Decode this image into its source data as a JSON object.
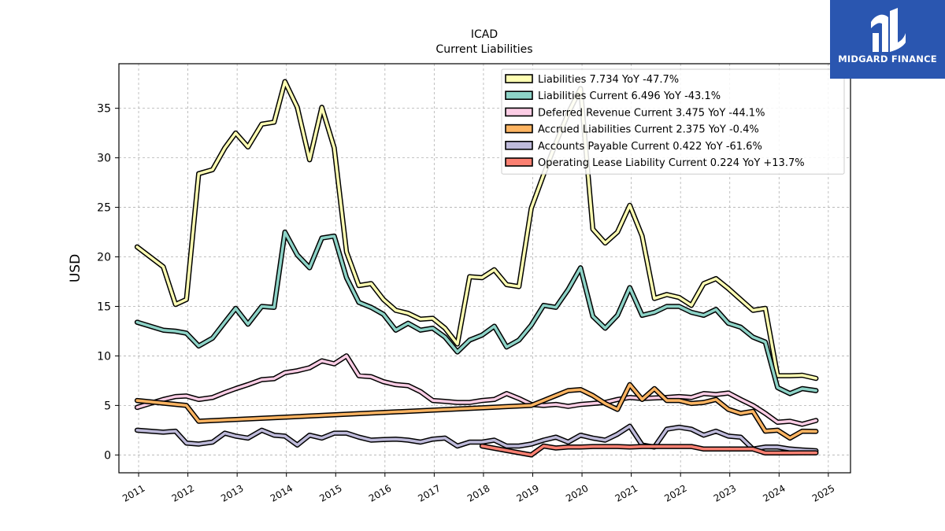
{
  "brand": {
    "name": "MIDGARD FINANCE",
    "bg_color": "#2a56b0"
  },
  "chart_data": {
    "type": "line",
    "title": "ICAD",
    "subtitle": "Current  Liabilities",
    "ylabel": "USD",
    "xlabel": "",
    "ylim": [
      -1.8,
      39.5
    ],
    "xlim": [
      2010.6,
      2025.45
    ],
    "yticks": [
      0,
      5,
      10,
      15,
      20,
      25,
      30,
      35
    ],
    "xticks": [
      "2011",
      "2012",
      "2013",
      "2014",
      "2015",
      "2016",
      "2017",
      "2018",
      "2019",
      "2020",
      "2021",
      "2022",
      "2023",
      "2024",
      "2025"
    ],
    "grid": true,
    "legend_position": "top-right",
    "series": [
      {
        "name": "Liabilities",
        "legend": "Liabilities  7.734 YoY -47.7%",
        "color": "#ffffb3",
        "points": [
          [
            2010.97,
            21.0
          ],
          [
            2011.5,
            19.0
          ],
          [
            2011.75,
            15.2
          ],
          [
            2011.97,
            15.7
          ],
          [
            2012.22,
            28.4
          ],
          [
            2012.5,
            28.8
          ],
          [
            2012.75,
            31.0
          ],
          [
            2012.97,
            32.5
          ],
          [
            2013.22,
            31.1
          ],
          [
            2013.5,
            33.4
          ],
          [
            2013.75,
            33.6
          ],
          [
            2013.97,
            37.7
          ],
          [
            2014.22,
            35.1
          ],
          [
            2014.47,
            29.8
          ],
          [
            2014.72,
            35.1
          ],
          [
            2014.97,
            31.0
          ],
          [
            2015.22,
            20.5
          ],
          [
            2015.47,
            17.1
          ],
          [
            2015.72,
            17.3
          ],
          [
            2015.97,
            15.7
          ],
          [
            2016.22,
            14.6
          ],
          [
            2016.47,
            14.3
          ],
          [
            2016.72,
            13.7
          ],
          [
            2016.97,
            13.8
          ],
          [
            2017.22,
            12.8
          ],
          [
            2017.47,
            11.2
          ],
          [
            2017.72,
            18.0
          ],
          [
            2017.97,
            17.9
          ],
          [
            2018.22,
            18.7
          ],
          [
            2018.47,
            17.2
          ],
          [
            2018.72,
            17.0
          ],
          [
            2018.97,
            24.9
          ],
          [
            2019.22,
            28.3
          ],
          [
            2019.47,
            31.5
          ],
          [
            2019.72,
            34.5
          ],
          [
            2019.97,
            37.0
          ],
          [
            2020.22,
            22.8
          ],
          [
            2020.47,
            21.4
          ],
          [
            2020.72,
            22.5
          ],
          [
            2020.97,
            25.2
          ],
          [
            2021.22,
            22.1
          ],
          [
            2021.47,
            15.8
          ],
          [
            2021.72,
            16.2
          ],
          [
            2021.97,
            15.9
          ],
          [
            2022.22,
            15.1
          ],
          [
            2022.47,
            17.3
          ],
          [
            2022.72,
            17.8
          ],
          [
            2022.97,
            16.8
          ],
          [
            2023.22,
            15.7
          ],
          [
            2023.47,
            14.6
          ],
          [
            2023.72,
            14.8
          ],
          [
            2023.97,
            8.0
          ],
          [
            2024.22,
            8.0
          ],
          [
            2024.47,
            8.05
          ],
          [
            2024.75,
            7.73
          ]
        ]
      },
      {
        "name": "Liabilities Current",
        "legend": "Liabilities Current  6.496 YoY -43.1%",
        "color": "#8dd3c7",
        "points": [
          [
            2010.97,
            13.4
          ],
          [
            2011.5,
            12.6
          ],
          [
            2011.75,
            12.5
          ],
          [
            2011.97,
            12.3
          ],
          [
            2012.22,
            11.0
          ],
          [
            2012.5,
            11.8
          ],
          [
            2012.75,
            13.4
          ],
          [
            2012.97,
            14.8
          ],
          [
            2013.22,
            13.2
          ],
          [
            2013.5,
            15.0
          ],
          [
            2013.75,
            14.9
          ],
          [
            2013.97,
            22.5
          ],
          [
            2014.22,
            20.2
          ],
          [
            2014.47,
            18.9
          ],
          [
            2014.72,
            21.9
          ],
          [
            2014.97,
            22.1
          ],
          [
            2015.22,
            17.9
          ],
          [
            2015.47,
            15.4
          ],
          [
            2015.72,
            14.9
          ],
          [
            2015.97,
            14.2
          ],
          [
            2016.22,
            12.6
          ],
          [
            2016.47,
            13.3
          ],
          [
            2016.72,
            12.6
          ],
          [
            2016.97,
            12.8
          ],
          [
            2017.22,
            11.9
          ],
          [
            2017.47,
            10.4
          ],
          [
            2017.72,
            11.6
          ],
          [
            2017.97,
            12.1
          ],
          [
            2018.22,
            13.0
          ],
          [
            2018.47,
            10.9
          ],
          [
            2018.72,
            11.6
          ],
          [
            2018.97,
            13.1
          ],
          [
            2019.22,
            15.1
          ],
          [
            2019.47,
            14.9
          ],
          [
            2019.72,
            16.7
          ],
          [
            2019.97,
            18.9
          ],
          [
            2020.22,
            14.0
          ],
          [
            2020.47,
            12.8
          ],
          [
            2020.72,
            14.1
          ],
          [
            2020.97,
            16.9
          ],
          [
            2021.22,
            14.1
          ],
          [
            2021.47,
            14.4
          ],
          [
            2021.72,
            15.0
          ],
          [
            2021.97,
            15.0
          ],
          [
            2022.22,
            14.4
          ],
          [
            2022.47,
            14.1
          ],
          [
            2022.72,
            14.7
          ],
          [
            2022.97,
            13.3
          ],
          [
            2023.22,
            12.9
          ],
          [
            2023.47,
            11.9
          ],
          [
            2023.72,
            11.4
          ],
          [
            2023.97,
            6.8
          ],
          [
            2024.22,
            6.2
          ],
          [
            2024.47,
            6.7
          ],
          [
            2024.75,
            6.5
          ]
        ]
      },
      {
        "name": "Deferred Revenue Current",
        "legend": "Deferred Revenue Current  3.475 YoY -44.1%",
        "color": "#fccde5",
        "points": [
          [
            2010.97,
            4.8
          ],
          [
            2011.5,
            5.6
          ],
          [
            2011.75,
            5.9
          ],
          [
            2011.97,
            5.95
          ],
          [
            2012.22,
            5.6
          ],
          [
            2012.5,
            5.8
          ],
          [
            2012.75,
            6.3
          ],
          [
            2012.97,
            6.7
          ],
          [
            2013.22,
            7.1
          ],
          [
            2013.5,
            7.6
          ],
          [
            2013.75,
            7.7
          ],
          [
            2013.97,
            8.3
          ],
          [
            2014.22,
            8.5
          ],
          [
            2014.47,
            8.8
          ],
          [
            2014.72,
            9.5
          ],
          [
            2014.97,
            9.2
          ],
          [
            2015.22,
            10.0
          ],
          [
            2015.47,
            8.0
          ],
          [
            2015.72,
            7.9
          ],
          [
            2015.97,
            7.4
          ],
          [
            2016.22,
            7.1
          ],
          [
            2016.47,
            7.0
          ],
          [
            2016.72,
            6.4
          ],
          [
            2016.97,
            5.5
          ],
          [
            2017.22,
            5.4
          ],
          [
            2017.47,
            5.3
          ],
          [
            2017.72,
            5.3
          ],
          [
            2017.97,
            5.5
          ],
          [
            2018.22,
            5.6
          ],
          [
            2018.47,
            6.2
          ],
          [
            2018.72,
            5.7
          ],
          [
            2018.97,
            5.1
          ],
          [
            2019.22,
            5.0
          ],
          [
            2019.47,
            5.1
          ],
          [
            2019.72,
            4.9
          ],
          [
            2019.97,
            5.1
          ],
          [
            2020.22,
            5.2
          ],
          [
            2020.47,
            5.3
          ],
          [
            2020.72,
            5.6
          ],
          [
            2020.97,
            5.8
          ],
          [
            2021.22,
            5.7
          ],
          [
            2021.47,
            5.75
          ],
          [
            2021.72,
            5.8
          ],
          [
            2021.97,
            5.9
          ],
          [
            2022.22,
            5.8
          ],
          [
            2022.47,
            6.2
          ],
          [
            2022.72,
            6.1
          ],
          [
            2022.97,
            6.25
          ],
          [
            2023.22,
            5.6
          ],
          [
            2023.47,
            5.0
          ],
          [
            2023.72,
            4.2
          ],
          [
            2023.97,
            3.3
          ],
          [
            2024.22,
            3.4
          ],
          [
            2024.47,
            3.1
          ],
          [
            2024.75,
            3.48
          ]
        ]
      },
      {
        "name": "Accrued Liabilities Current",
        "legend": "Accrued Liabilities Current  2.375 YoY -0.4%",
        "color": "#fdb462",
        "points": [
          [
            2010.97,
            5.5
          ],
          [
            2011.97,
            5.0
          ],
          [
            2012.22,
            3.4
          ],
          [
            2018.97,
            5.0
          ],
          [
            2019.22,
            5.5
          ],
          [
            2019.47,
            6.0
          ],
          [
            2019.72,
            6.5
          ],
          [
            2019.97,
            6.6
          ],
          [
            2020.22,
            6.0
          ],
          [
            2020.47,
            5.2
          ],
          [
            2020.72,
            4.6
          ],
          [
            2020.97,
            7.1
          ],
          [
            2021.22,
            5.6
          ],
          [
            2021.47,
            6.7
          ],
          [
            2021.72,
            5.5
          ],
          [
            2021.97,
            5.5
          ],
          [
            2022.22,
            5.2
          ],
          [
            2022.47,
            5.3
          ],
          [
            2022.72,
            5.6
          ],
          [
            2022.97,
            4.6
          ],
          [
            2023.22,
            4.2
          ],
          [
            2023.47,
            4.4
          ],
          [
            2023.72,
            2.4
          ],
          [
            2023.97,
            2.5
          ],
          [
            2024.22,
            1.7
          ],
          [
            2024.47,
            2.4
          ],
          [
            2024.75,
            2.38
          ]
        ]
      },
      {
        "name": "Accounts Payable Current",
        "legend": "Accounts Payable Current  0.422 YoY -61.6%",
        "color": "#bebada",
        "points": [
          [
            2010.97,
            2.5
          ],
          [
            2011.5,
            2.3
          ],
          [
            2011.75,
            2.4
          ],
          [
            2011.97,
            1.2
          ],
          [
            2012.22,
            1.1
          ],
          [
            2012.5,
            1.3
          ],
          [
            2012.75,
            2.2
          ],
          [
            2012.97,
            1.9
          ],
          [
            2013.22,
            1.7
          ],
          [
            2013.5,
            2.5
          ],
          [
            2013.75,
            2.0
          ],
          [
            2013.97,
            1.9
          ],
          [
            2014.22,
            1.0
          ],
          [
            2014.47,
            2.0
          ],
          [
            2014.72,
            1.7
          ],
          [
            2014.97,
            2.2
          ],
          [
            2015.22,
            2.2
          ],
          [
            2015.47,
            1.8
          ],
          [
            2015.72,
            1.5
          ],
          [
            2015.97,
            1.55
          ],
          [
            2016.22,
            1.6
          ],
          [
            2016.47,
            1.5
          ],
          [
            2016.72,
            1.3
          ],
          [
            2016.97,
            1.6
          ],
          [
            2017.22,
            1.7
          ],
          [
            2017.47,
            0.9
          ],
          [
            2017.72,
            1.3
          ],
          [
            2017.97,
            1.3
          ],
          [
            2018.22,
            1.5
          ],
          [
            2018.47,
            0.9
          ],
          [
            2018.72,
            0.9
          ],
          [
            2018.97,
            1.1
          ],
          [
            2019.22,
            1.5
          ],
          [
            2019.47,
            1.8
          ],
          [
            2019.72,
            1.3
          ],
          [
            2019.97,
            2.0
          ],
          [
            2020.22,
            1.7
          ],
          [
            2020.47,
            1.5
          ],
          [
            2020.72,
            2.1
          ],
          [
            2020.97,
            2.9
          ],
          [
            2021.22,
            1.0
          ],
          [
            2021.47,
            0.8
          ],
          [
            2021.72,
            2.6
          ],
          [
            2021.97,
            2.8
          ],
          [
            2022.22,
            2.6
          ],
          [
            2022.47,
            2.0
          ],
          [
            2022.72,
            2.4
          ],
          [
            2022.97,
            1.9
          ],
          [
            2023.22,
            1.8
          ],
          [
            2023.47,
            0.6
          ],
          [
            2023.72,
            0.8
          ],
          [
            2023.97,
            0.8
          ],
          [
            2024.22,
            0.6
          ],
          [
            2024.47,
            0.5
          ],
          [
            2024.75,
            0.42
          ]
        ]
      },
      {
        "name": "Operating Lease Liability Current",
        "legend": "Operating Lease Liability Current  0.224 YoY +13.7%",
        "color": "#fb8072",
        "points": [
          [
            2017.97,
            0.9
          ],
          [
            2018.97,
            0.0
          ],
          [
            2019.22,
            0.9
          ],
          [
            2019.47,
            0.7
          ],
          [
            2019.72,
            0.8
          ],
          [
            2019.97,
            0.8
          ],
          [
            2020.22,
            0.85
          ],
          [
            2020.47,
            0.85
          ],
          [
            2020.72,
            0.85
          ],
          [
            2020.97,
            0.8
          ],
          [
            2021.22,
            0.85
          ],
          [
            2021.47,
            0.85
          ],
          [
            2021.72,
            0.85
          ],
          [
            2021.97,
            0.85
          ],
          [
            2022.22,
            0.85
          ],
          [
            2022.47,
            0.6
          ],
          [
            2022.72,
            0.6
          ],
          [
            2022.97,
            0.6
          ],
          [
            2023.22,
            0.6
          ],
          [
            2023.47,
            0.6
          ],
          [
            2023.72,
            0.2
          ],
          [
            2023.97,
            0.2
          ],
          [
            2024.22,
            0.2
          ],
          [
            2024.47,
            0.22
          ],
          [
            2024.75,
            0.22
          ]
        ]
      }
    ]
  }
}
